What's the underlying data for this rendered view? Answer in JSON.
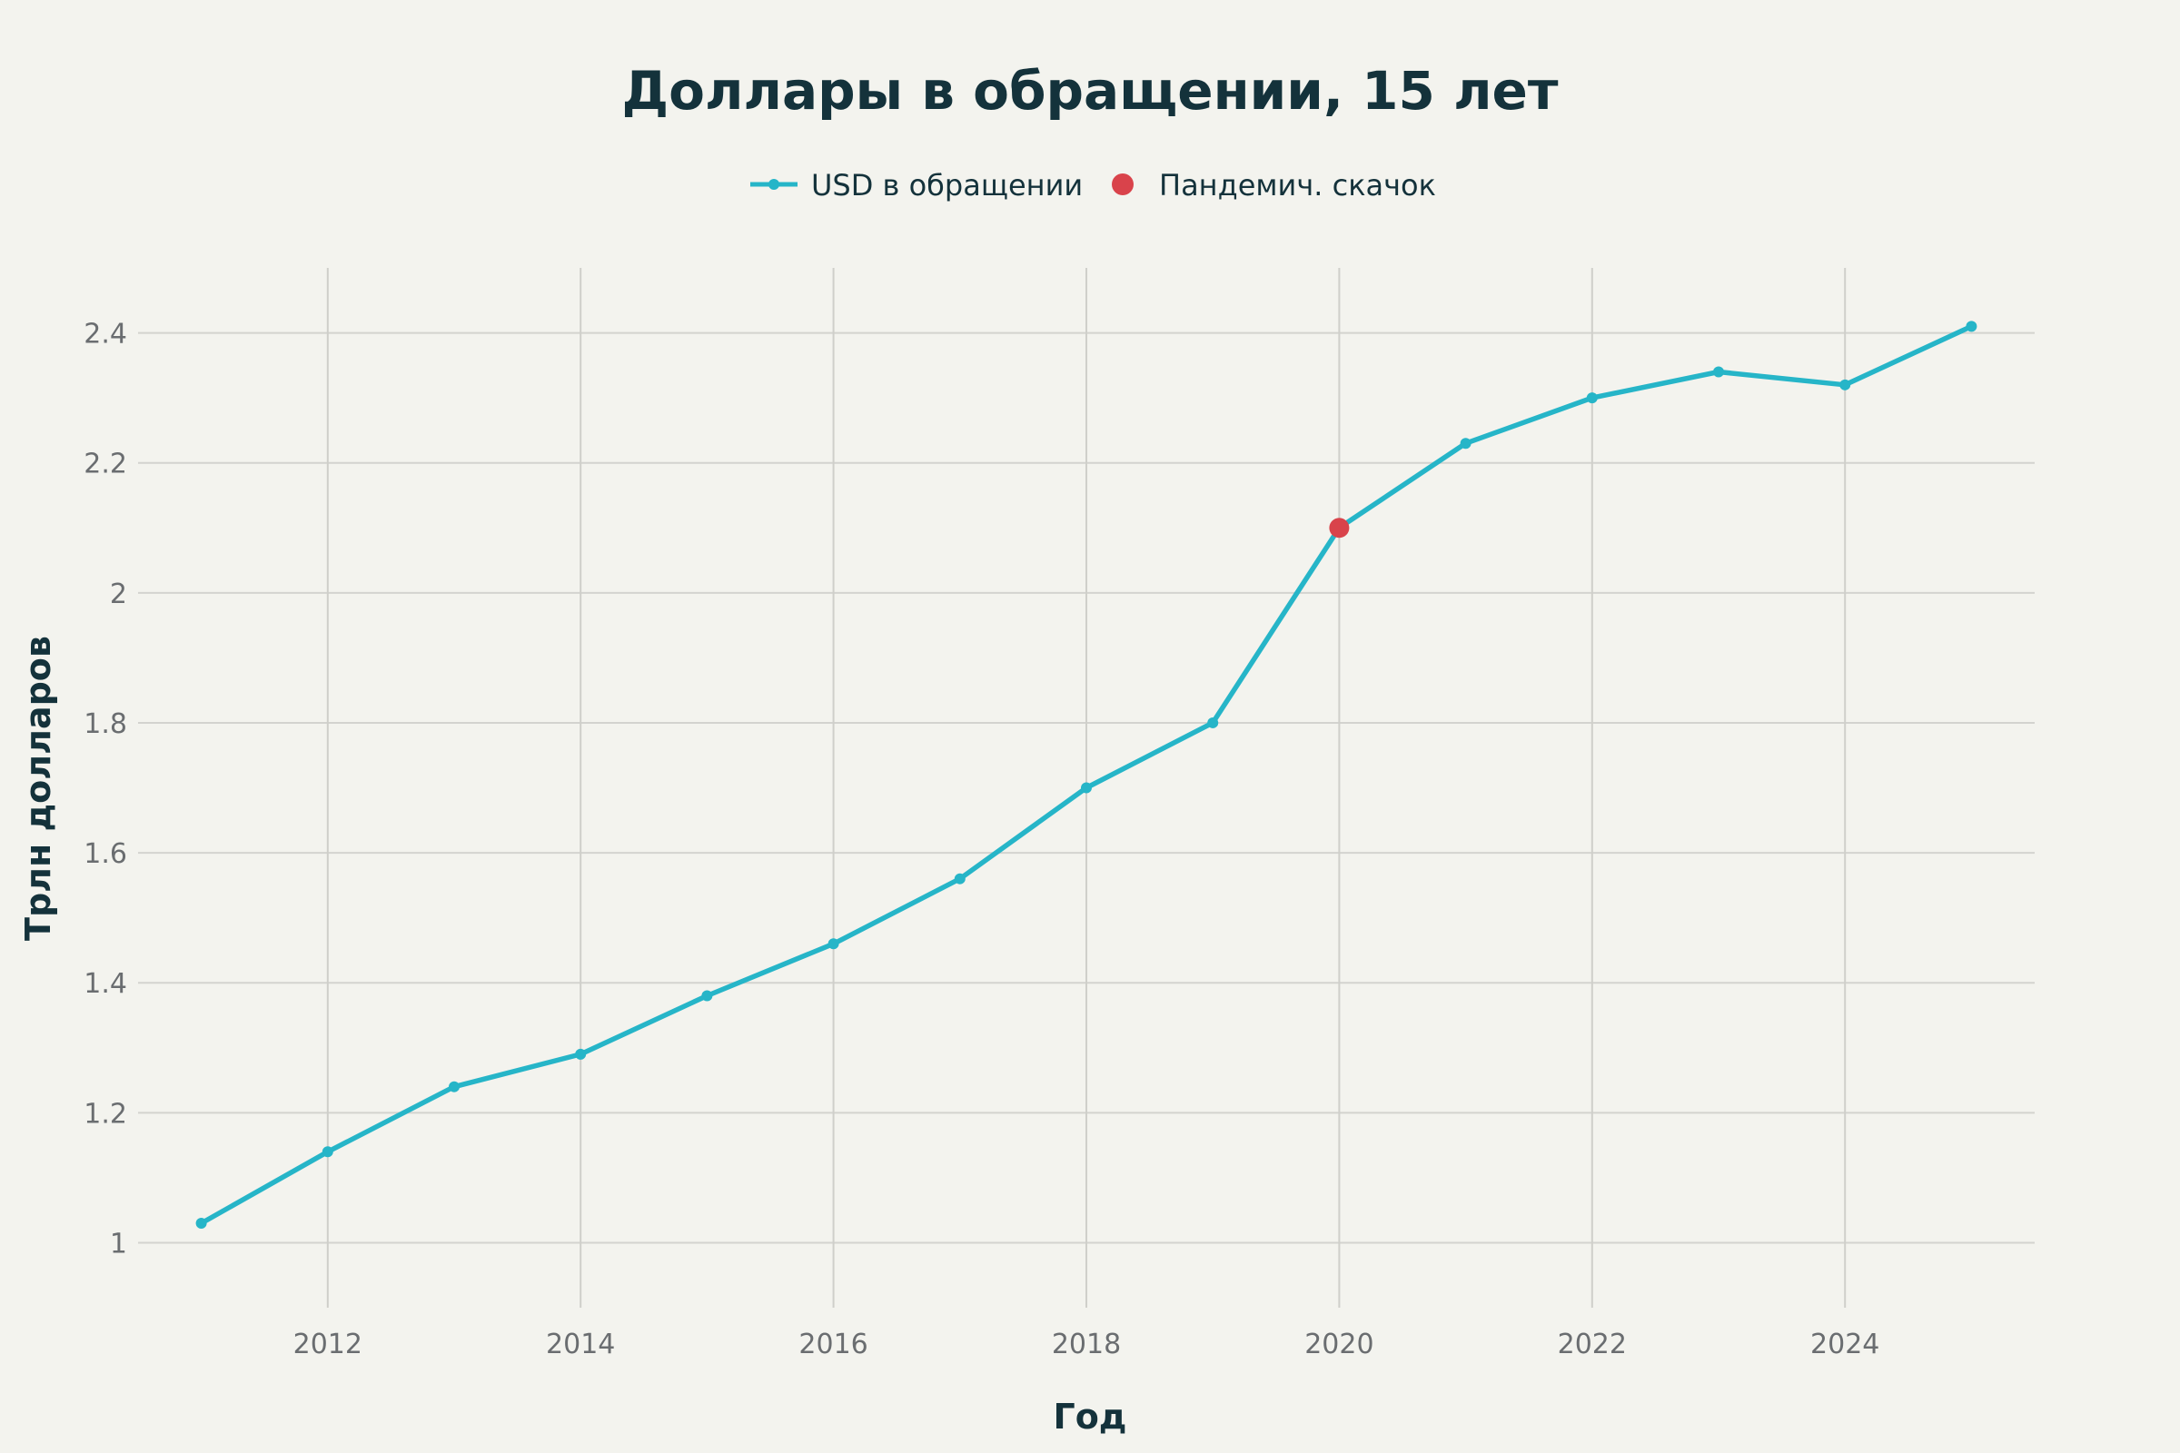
{
  "chart_data": {
    "type": "line",
    "title": "Доллары в обращении, 15 лет",
    "xlabel": "Год",
    "ylabel": "Трлн долларов",
    "x": [
      2011,
      2012,
      2013,
      2014,
      2015,
      2016,
      2017,
      2018,
      2019,
      2020,
      2021,
      2022,
      2023,
      2024,
      2025
    ],
    "series": [
      {
        "name": "USD в обращении",
        "color": "#26b5c8",
        "values": [
          1.03,
          1.14,
          1.24,
          1.29,
          1.38,
          1.46,
          1.56,
          1.7,
          1.8,
          2.1,
          2.23,
          2.3,
          2.34,
          2.32,
          2.41
        ]
      }
    ],
    "highlight": {
      "name": "Пандемич. скачок",
      "color": "#d9434b",
      "x": 2020,
      "y": 2.1
    },
    "x_ticks": [
      "2012",
      "2014",
      "2016",
      "2018",
      "2020",
      "2022",
      "2024"
    ],
    "y_ticks": [
      "1",
      "1.2",
      "1.4",
      "1.6",
      "1.8",
      "2",
      "2.2",
      "2.4"
    ],
    "xlim": [
      2010.5,
      2025.5
    ],
    "ylim": [
      0.9,
      2.5
    ],
    "grid": true,
    "legend_position": "top-center"
  }
}
